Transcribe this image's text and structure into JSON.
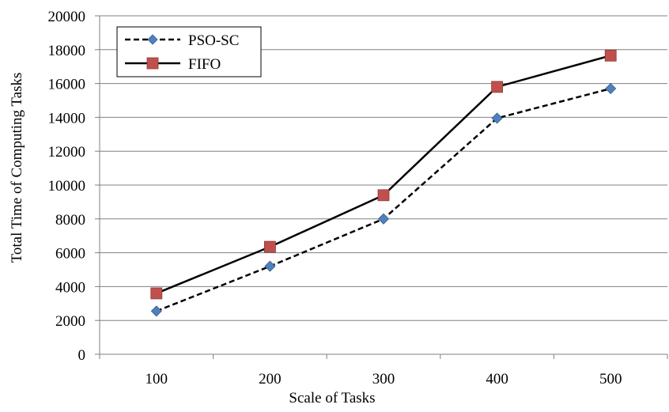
{
  "chart_data": {
    "type": "line",
    "title": "",
    "xlabel": "Scale of Tasks",
    "ylabel": "Total Time of Computing Tasks",
    "categories": [
      "100",
      "200",
      "300",
      "400",
      "500"
    ],
    "ylim": [
      0,
      20000
    ],
    "yticks": [
      "0",
      "2000",
      "4000",
      "6000",
      "8000",
      "10000",
      "12000",
      "14000",
      "16000",
      "18000",
      "20000"
    ],
    "grid": "horizontal",
    "legend_position": "top-left",
    "series": [
      {
        "name": "PSO-SC",
        "values": [
          2550,
          5200,
          8000,
          13950,
          15700
        ],
        "color": "#4f81bd",
        "line_style": "dashed",
        "marker": "diamond"
      },
      {
        "name": "FIFO",
        "values": [
          3600,
          6350,
          9400,
          15800,
          17650
        ],
        "color": "#c0504d",
        "line_style": "solid",
        "marker": "square"
      }
    ]
  }
}
